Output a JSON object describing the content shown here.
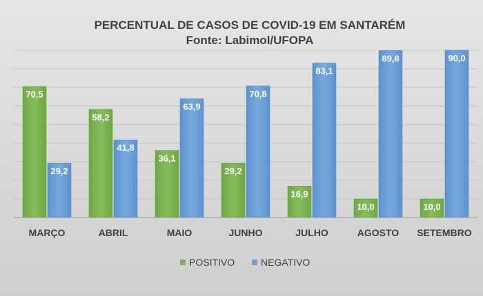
{
  "chart_data": {
    "type": "bar",
    "title": "PERCENTUAL DE CASOS DE COVID-19 EM SANTARÉM",
    "subtitle": "Fonte: Labimol/UFOPA",
    "categories": [
      "MARÇO",
      "ABRIL",
      "MAIO",
      "JUNHO",
      "JULHO",
      "AGOSTO",
      "SETEMBRO"
    ],
    "series": [
      {
        "name": "POSITIVO",
        "values": [
          70.5,
          58.2,
          36.1,
          29.2,
          16.9,
          10.0,
          10.0
        ],
        "labels": [
          "70,5",
          "58,2",
          "36,1",
          "29,2",
          "16,9",
          "10,0",
          "10,0"
        ],
        "color": "#7cb350"
      },
      {
        "name": "NEGATIVO",
        "values": [
          29.2,
          41.8,
          63.9,
          70.8,
          83.1,
          89.8,
          90.0
        ],
        "labels": [
          "29,2",
          "41,8",
          "63,9",
          "70,8",
          "83,1",
          "89,8",
          "90,0"
        ],
        "color": "#6a9fd6"
      }
    ],
    "ylim": [
      0,
      90
    ],
    "grid": true,
    "legend_position": "bottom",
    "background": "#dcdcdc"
  }
}
